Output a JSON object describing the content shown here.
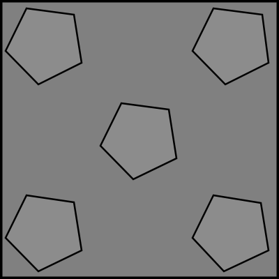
{
  "colors": {
    "background": "#808080",
    "border": "#000000",
    "piece_fill": "#8c8c8c",
    "piece_stroke": "#000000"
  },
  "pieces": [
    {
      "name": "pentagon-top-left",
      "shape": "pentagon"
    },
    {
      "name": "pentagon-top-right",
      "shape": "pentagon"
    },
    {
      "name": "pentagon-center",
      "shape": "pentagon"
    },
    {
      "name": "pentagon-bottom-left",
      "shape": "pentagon"
    },
    {
      "name": "pentagon-bottom-right",
      "shape": "pentagon"
    }
  ]
}
